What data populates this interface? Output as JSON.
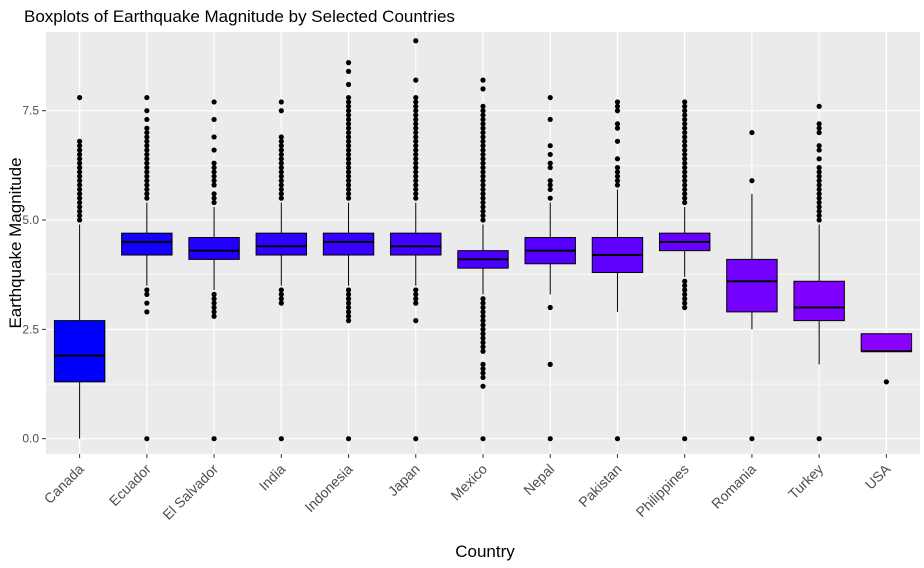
{
  "chart_data": {
    "type": "boxplot",
    "title": "Boxplots of Earthquake Magnitude by Selected Countries",
    "xlabel": "Country",
    "ylabel": "Earthquake Magnitude",
    "ylim": [
      -0.35,
      9.3
    ],
    "yticks": [
      "0.0",
      "2.5",
      "5.0",
      "7.5"
    ],
    "ytick_values": [
      0,
      2.5,
      5.0,
      7.5
    ],
    "grid": true,
    "legend": "none",
    "panel_background": "#ebebeb",
    "grid_color": "#ffffff",
    "categories": [
      "Canada",
      "Ecuador",
      "El Salvador",
      "India",
      "Indonesia",
      "Japan",
      "Mexico",
      "Nepal",
      "Pakistan",
      "Philippines",
      "Romania",
      "Turkey",
      "USA"
    ],
    "fill_colors": [
      "#0000ff",
      "#1400ff",
      "#2200ff",
      "#2d00ff",
      "#3700ff",
      "#4100ff",
      "#4b00ff",
      "#5500ff",
      "#5f00ff",
      "#6900ff",
      "#7400ff",
      "#7f00ff",
      "#8c00ff"
    ],
    "boxes": [
      {
        "q1": 1.3,
        "median": 1.9,
        "q3": 2.7,
        "whisker_low": 0.0,
        "whisker_high": 4.9,
        "outliers": [
          5.0,
          5.1,
          5.2,
          5.3,
          5.4,
          5.5,
          5.6,
          5.7,
          5.8,
          5.9,
          6.0,
          6.1,
          6.2,
          6.3,
          6.4,
          6.5,
          6.6,
          6.7,
          6.8,
          7.8
        ]
      },
      {
        "q1": 4.2,
        "median": 4.5,
        "q3": 4.7,
        "whisker_low": 3.5,
        "whisker_high": 5.4,
        "outliers": [
          0.0,
          2.9,
          3.1,
          3.3,
          3.4,
          5.5,
          5.6,
          5.7,
          5.8,
          5.9,
          6.0,
          6.1,
          6.2,
          6.3,
          6.4,
          6.5,
          6.6,
          6.7,
          6.8,
          6.9,
          7.0,
          7.1,
          7.3,
          7.5,
          7.8
        ]
      },
      {
        "q1": 4.1,
        "median": 4.3,
        "q3": 4.6,
        "whisker_low": 3.4,
        "whisker_high": 5.3,
        "outliers": [
          0.0,
          2.8,
          2.9,
          3.0,
          3.1,
          3.2,
          3.3,
          5.4,
          5.5,
          5.6,
          5.8,
          5.9,
          6.0,
          6.1,
          6.2,
          6.3,
          6.6,
          6.9,
          7.3,
          7.7
        ]
      },
      {
        "q1": 4.2,
        "median": 4.4,
        "q3": 4.7,
        "whisker_low": 3.5,
        "whisker_high": 5.4,
        "outliers": [
          0.0,
          3.1,
          3.2,
          3.3,
          3.4,
          5.5,
          5.6,
          5.7,
          5.8,
          5.9,
          6.0,
          6.1,
          6.2,
          6.3,
          6.4,
          6.5,
          6.6,
          6.7,
          6.8,
          6.9,
          7.5,
          7.7
        ]
      },
      {
        "q1": 4.2,
        "median": 4.5,
        "q3": 4.7,
        "whisker_low": 3.5,
        "whisker_high": 5.4,
        "outliers": [
          0.0,
          2.7,
          2.8,
          2.9,
          3.0,
          3.1,
          3.2,
          3.3,
          3.4,
          5.5,
          5.6,
          5.7,
          5.8,
          5.9,
          6.0,
          6.1,
          6.2,
          6.3,
          6.4,
          6.5,
          6.6,
          6.7,
          6.8,
          6.9,
          7.0,
          7.1,
          7.2,
          7.3,
          7.4,
          7.5,
          7.6,
          7.7,
          7.8,
          8.1,
          8.4,
          8.6
        ]
      },
      {
        "q1": 4.2,
        "median": 4.4,
        "q3": 4.7,
        "whisker_low": 3.5,
        "whisker_high": 5.4,
        "outliers": [
          0.0,
          2.7,
          3.1,
          3.2,
          3.3,
          3.4,
          5.5,
          5.6,
          5.7,
          5.8,
          5.9,
          6.0,
          6.1,
          6.2,
          6.3,
          6.4,
          6.5,
          6.6,
          6.7,
          6.8,
          6.9,
          7.0,
          7.1,
          7.2,
          7.3,
          7.4,
          7.5,
          7.6,
          7.7,
          7.8,
          8.2,
          9.1
        ]
      },
      {
        "q1": 3.9,
        "median": 4.1,
        "q3": 4.3,
        "whisker_low": 3.3,
        "whisker_high": 4.9,
        "outliers": [
          0.0,
          1.2,
          1.4,
          1.5,
          1.6,
          1.7,
          2.0,
          2.1,
          2.2,
          2.3,
          2.4,
          2.5,
          2.6,
          2.7,
          2.8,
          2.9,
          3.0,
          3.1,
          3.2,
          5.0,
          5.1,
          5.2,
          5.3,
          5.4,
          5.5,
          5.6,
          5.7,
          5.8,
          5.9,
          6.0,
          6.1,
          6.2,
          6.3,
          6.4,
          6.5,
          6.6,
          6.7,
          6.8,
          6.9,
          7.0,
          7.1,
          7.2,
          7.3,
          7.4,
          7.5,
          7.6,
          8.0,
          8.2
        ]
      },
      {
        "q1": 4.0,
        "median": 4.3,
        "q3": 4.6,
        "whisker_low": 3.3,
        "whisker_high": 5.4,
        "outliers": [
          0.0,
          1.7,
          3.0,
          5.5,
          5.7,
          5.8,
          5.9,
          6.2,
          6.3,
          6.5,
          6.7,
          7.3,
          7.8
        ]
      },
      {
        "q1": 3.8,
        "median": 4.2,
        "q3": 4.6,
        "whisker_low": 2.9,
        "whisker_high": 5.7,
        "outliers": [
          0.0,
          5.8,
          5.9,
          6.0,
          6.1,
          6.2,
          6.4,
          6.8,
          7.1,
          7.2,
          7.5,
          7.6,
          7.7
        ]
      },
      {
        "q1": 4.3,
        "median": 4.5,
        "q3": 4.7,
        "whisker_low": 3.7,
        "whisker_high": 5.3,
        "outliers": [
          0.0,
          3.0,
          3.1,
          3.2,
          3.3,
          3.4,
          3.5,
          3.6,
          5.4,
          5.5,
          5.6,
          5.7,
          5.8,
          5.9,
          6.0,
          6.1,
          6.2,
          6.3,
          6.4,
          6.5,
          6.6,
          6.7,
          6.8,
          6.9,
          7.0,
          7.1,
          7.2,
          7.3,
          7.4,
          7.5,
          7.6,
          7.7
        ]
      },
      {
        "q1": 2.9,
        "median": 3.6,
        "q3": 4.1,
        "whisker_low": 2.5,
        "whisker_high": 5.6,
        "outliers": [
          0.0,
          5.9,
          7.0
        ]
      },
      {
        "q1": 2.7,
        "median": 3.0,
        "q3": 3.6,
        "whisker_low": 1.7,
        "whisker_high": 4.9,
        "outliers": [
          0.0,
          5.0,
          5.1,
          5.2,
          5.3,
          5.4,
          5.5,
          5.6,
          5.7,
          5.8,
          5.9,
          6.0,
          6.1,
          6.2,
          6.4,
          6.6,
          6.7,
          7.0,
          7.1,
          7.2,
          7.6
        ]
      },
      {
        "q1": 2.0,
        "median": 2.0,
        "q3": 2.4,
        "whisker_low": 2.0,
        "whisker_high": 2.4,
        "outliers": [
          1.3
        ]
      }
    ]
  }
}
